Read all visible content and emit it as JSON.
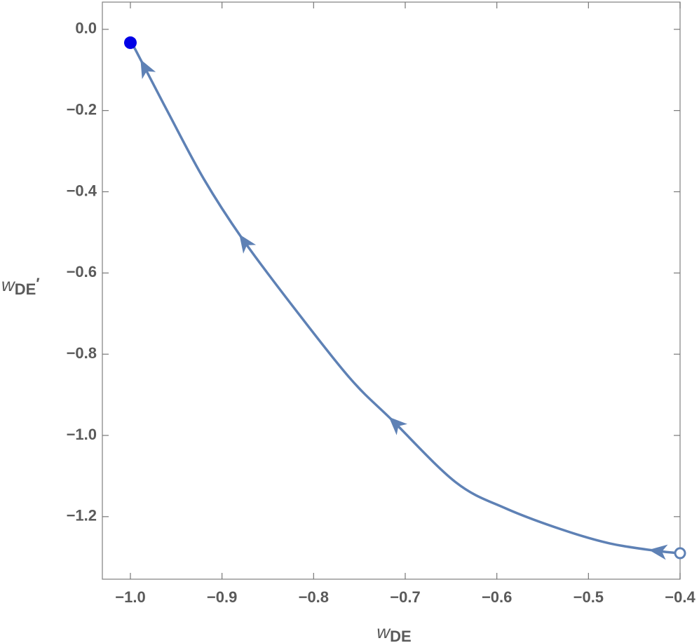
{
  "chart_data": {
    "type": "line",
    "x_label": {
      "base": "w",
      "sub": "DE"
    },
    "y_label": {
      "base": "w",
      "sub": "DE",
      "suffix": "′"
    },
    "series": [
      {
        "color": "#5e81b5",
        "x": [
          -0.4,
          -0.423,
          -0.4765,
          -0.53,
          -0.591,
          -0.645,
          -0.714,
          -0.76,
          -0.821,
          -0.878,
          -0.92,
          -0.959,
          -0.989,
          -0.997,
          -1.0
        ],
        "values": [
          -1.29,
          -1.285,
          -1.266,
          -1.231,
          -1.179,
          -1.115,
          -0.963,
          -0.86,
          -0.687,
          -0.515,
          -0.368,
          -0.204,
          -0.074,
          -0.04,
          -0.033
        ]
      }
    ],
    "start_point": {
      "x": -0.4,
      "y": -1.29,
      "color": "#5e81b5"
    },
    "end_point": {
      "x": -1.0,
      "y": -0.033,
      "color": "#0000e6"
    },
    "xlim": [
      -1.0306,
      -0.4
    ],
    "ylim": [
      -1.354,
      0.067
    ],
    "xticks": [
      {
        "value": -1,
        "label": "−1.0"
      },
      {
        "value": -0.9,
        "label": "−0.9"
      },
      {
        "value": -0.8,
        "label": "−0.8"
      },
      {
        "value": -0.7,
        "label": "−0.7"
      },
      {
        "value": -0.6,
        "label": "−0.6"
      },
      {
        "value": -0.5,
        "label": "−0.5"
      },
      {
        "value": -0.4,
        "label": "−0.4"
      }
    ],
    "yticks": [
      {
        "value": 0,
        "label": "0.0"
      },
      {
        "value": -0.2,
        "label": "−0.2"
      },
      {
        "value": -0.4,
        "label": "−0.4"
      },
      {
        "value": -0.6,
        "label": "−0.6"
      },
      {
        "value": -0.8,
        "label": "−0.8"
      },
      {
        "value": -1,
        "label": "−1.0"
      },
      {
        "value": -1.2,
        "label": "−1.2"
      }
    ]
  }
}
